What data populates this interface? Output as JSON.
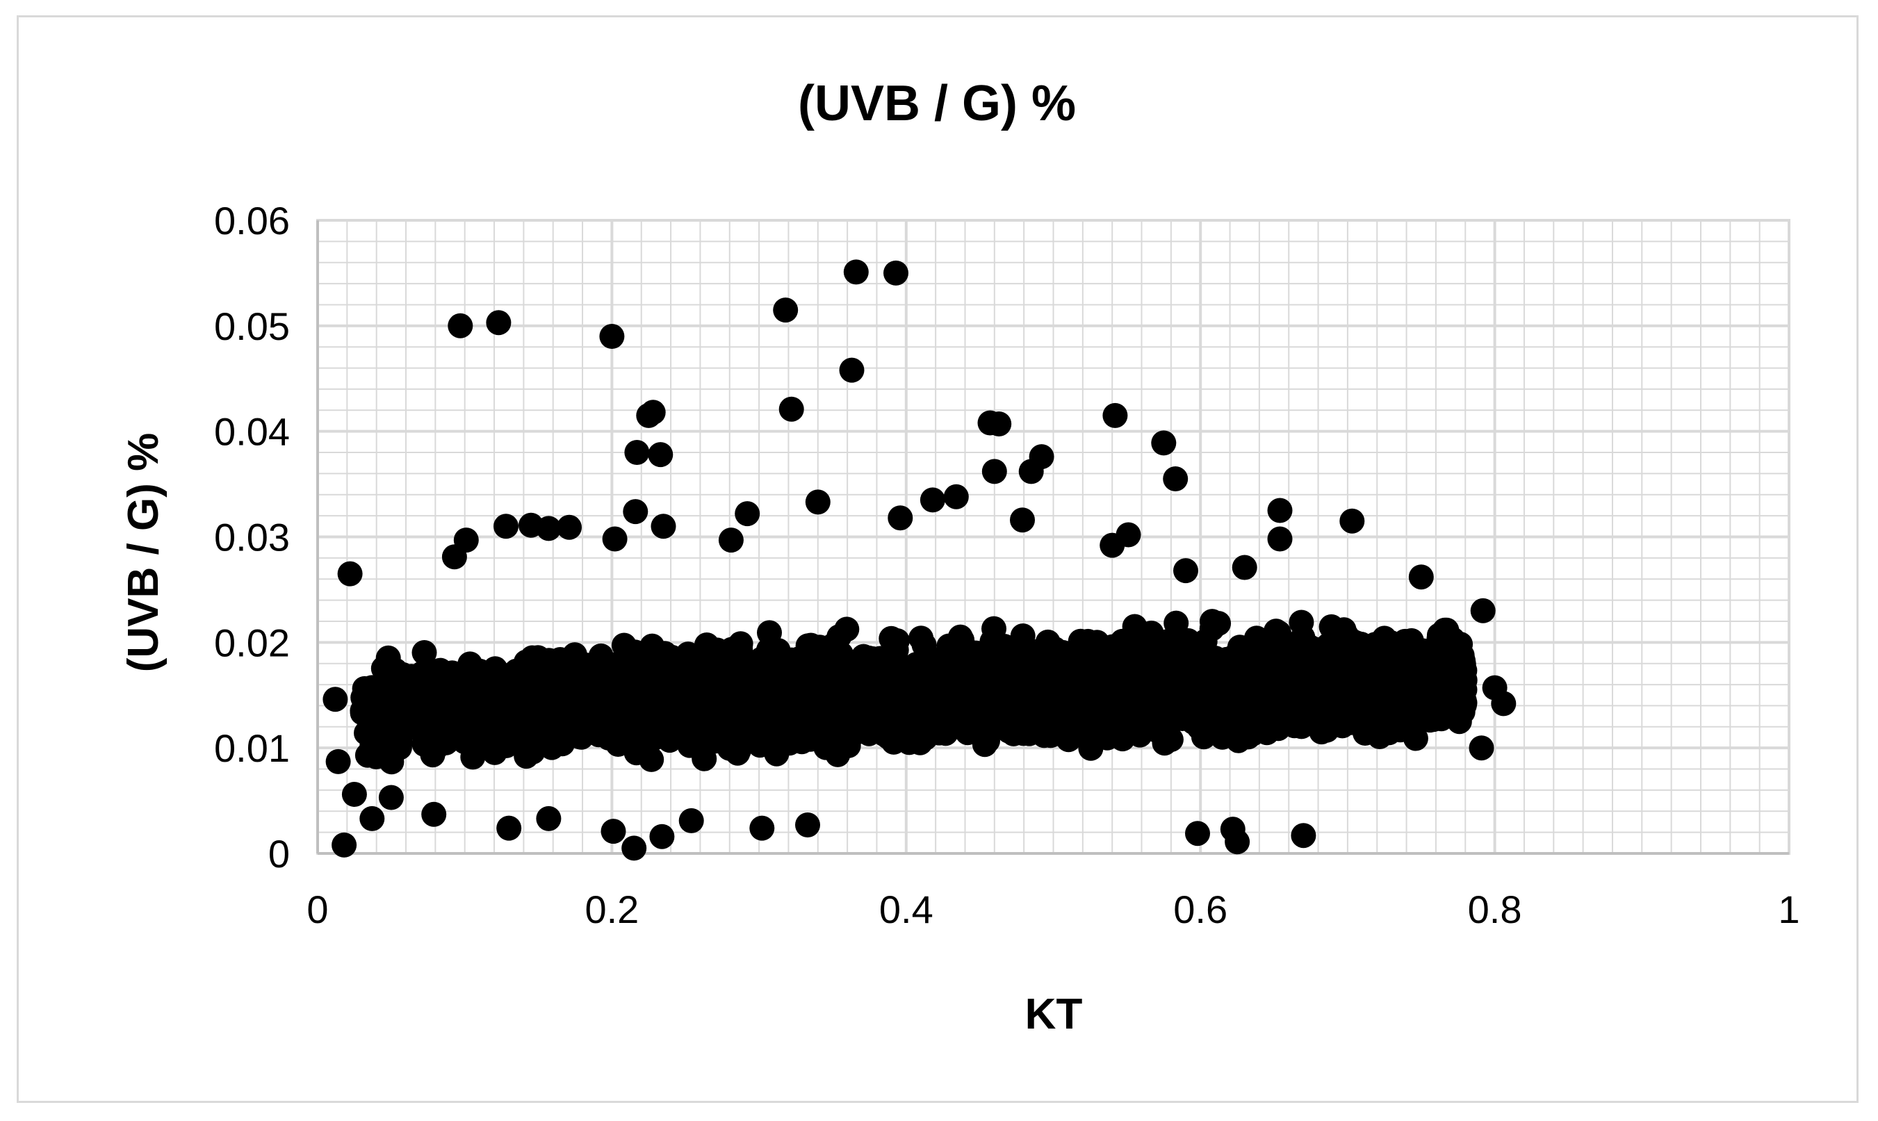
{
  "chart_data": {
    "type": "scatter",
    "title": "(UVB / G) %",
    "xlabel": "KT",
    "ylabel": "(UVB / G) %",
    "xlim": [
      0,
      1
    ],
    "ylim": [
      0,
      0.06
    ],
    "x_ticks": [
      "0",
      "0.2",
      "0.4",
      "0.6",
      "0.8",
      "1"
    ],
    "y_ticks": [
      "0",
      "0.01",
      "0.02",
      "0.03",
      "0.04",
      "0.05",
      "0.06"
    ],
    "grid": true,
    "legend": "none",
    "marker_color": "#000000",
    "grid_color": "#d9d9d9",
    "series": [
      {
        "values": [
          {
            "x": 0.097,
            "y": 0.05
          },
          {
            "x": 0.123,
            "y": 0.0503
          },
          {
            "x": 0.2,
            "y": 0.049
          },
          {
            "x": 0.318,
            "y": 0.0515
          },
          {
            "x": 0.366,
            "y": 0.0551
          },
          {
            "x": 0.393,
            "y": 0.055
          },
          {
            "x": 0.363,
            "y": 0.0458
          },
          {
            "x": 0.322,
            "y": 0.0421
          },
          {
            "x": 0.225,
            "y": 0.0415
          },
          {
            "x": 0.228,
            "y": 0.0418
          },
          {
            "x": 0.217,
            "y": 0.038
          },
          {
            "x": 0.233,
            "y": 0.0378
          },
          {
            "x": 0.457,
            "y": 0.0408
          },
          {
            "x": 0.463,
            "y": 0.0407
          },
          {
            "x": 0.542,
            "y": 0.0415
          },
          {
            "x": 0.575,
            "y": 0.0389
          },
          {
            "x": 0.583,
            "y": 0.0355
          },
          {
            "x": 0.46,
            "y": 0.0362
          },
          {
            "x": 0.485,
            "y": 0.0362
          },
          {
            "x": 0.492,
            "y": 0.0376
          },
          {
            "x": 0.34,
            "y": 0.0333
          },
          {
            "x": 0.418,
            "y": 0.0335
          },
          {
            "x": 0.434,
            "y": 0.0338
          },
          {
            "x": 0.216,
            "y": 0.0324
          },
          {
            "x": 0.292,
            "y": 0.0322
          },
          {
            "x": 0.396,
            "y": 0.0318
          },
          {
            "x": 0.479,
            "y": 0.0316
          },
          {
            "x": 0.703,
            "y": 0.0315
          },
          {
            "x": 0.654,
            "y": 0.0325
          },
          {
            "x": 0.654,
            "y": 0.0298
          },
          {
            "x": 0.128,
            "y": 0.031
          },
          {
            "x": 0.145,
            "y": 0.0311
          },
          {
            "x": 0.157,
            "y": 0.0308
          },
          {
            "x": 0.171,
            "y": 0.0309
          },
          {
            "x": 0.235,
            "y": 0.031
          },
          {
            "x": 0.101,
            "y": 0.0297
          },
          {
            "x": 0.093,
            "y": 0.0281
          },
          {
            "x": 0.202,
            "y": 0.0298
          },
          {
            "x": 0.281,
            "y": 0.0297
          },
          {
            "x": 0.551,
            "y": 0.0302
          },
          {
            "x": 0.54,
            "y": 0.0292
          },
          {
            "x": 0.022,
            "y": 0.0265
          },
          {
            "x": 0.014,
            "y": 0.0087
          },
          {
            "x": 0.012,
            "y": 0.0146
          },
          {
            "x": 0.018,
            "y": 0.0008
          },
          {
            "x": 0.025,
            "y": 0.0056
          },
          {
            "x": 0.037,
            "y": 0.0033
          },
          {
            "x": 0.05,
            "y": 0.0053
          },
          {
            "x": 0.079,
            "y": 0.0037
          },
          {
            "x": 0.13,
            "y": 0.0024
          },
          {
            "x": 0.157,
            "y": 0.0033
          },
          {
            "x": 0.201,
            "y": 0.0021
          },
          {
            "x": 0.215,
            "y": 0.0005
          },
          {
            "x": 0.234,
            "y": 0.0016
          },
          {
            "x": 0.254,
            "y": 0.0031
          },
          {
            "x": 0.302,
            "y": 0.0024
          },
          {
            "x": 0.333,
            "y": 0.0027
          },
          {
            "x": 0.598,
            "y": 0.0019
          },
          {
            "x": 0.622,
            "y": 0.0023
          },
          {
            "x": 0.625,
            "y": 0.0011
          },
          {
            "x": 0.67,
            "y": 0.0017
          },
          {
            "x": 0.792,
            "y": 0.023
          },
          {
            "x": 0.8,
            "y": 0.0157
          },
          {
            "x": 0.806,
            "y": 0.0142
          },
          {
            "x": 0.791,
            "y": 0.01
          },
          {
            "x": 0.776,
            "y": 0.0125
          },
          {
            "x": 0.75,
            "y": 0.0262
          },
          {
            "x": 0.63,
            "y": 0.0271
          },
          {
            "x": 0.59,
            "y": 0.0268
          }
        ]
      }
    ]
  }
}
